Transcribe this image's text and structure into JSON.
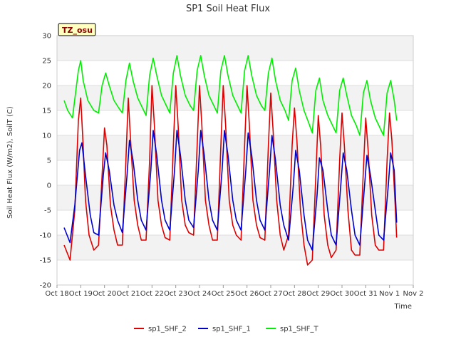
{
  "chart_data": {
    "type": "line",
    "title": "SP1 Soil Heat Flux",
    "xlabel": "Time",
    "ylabel": "Soil Heat Flux (W/m2), SoilT (C)",
    "badge": "TZ_osu",
    "ylim": [
      -20,
      30
    ],
    "yticks": [
      -20,
      -15,
      -10,
      -5,
      0,
      5,
      10,
      15,
      20,
      25,
      30
    ],
    "xlim": [
      0,
      15
    ],
    "xticks": [
      {
        "pos": 0,
        "label": "Oct 18"
      },
      {
        "pos": 1,
        "label": "Oct 19"
      },
      {
        "pos": 2,
        "label": "Oct 20"
      },
      {
        "pos": 3,
        "label": "Oct 21"
      },
      {
        "pos": 4,
        "label": "Oct 22"
      },
      {
        "pos": 5,
        "label": "Oct 23"
      },
      {
        "pos": 6,
        "label": "Oct 24"
      },
      {
        "pos": 7,
        "label": "Oct 25"
      },
      {
        "pos": 8,
        "label": "Oct 26"
      },
      {
        "pos": 9,
        "label": "Oct 27"
      },
      {
        "pos": 10,
        "label": "Oct 28"
      },
      {
        "pos": 11,
        "label": "Oct 29"
      },
      {
        "pos": 12,
        "label": "Oct 30"
      },
      {
        "pos": 13,
        "label": "Oct 31"
      },
      {
        "pos": 14,
        "label": "Nov 1"
      },
      {
        "pos": 15,
        "label": "Nov 2"
      }
    ],
    "grid": true,
    "legend": "bottom",
    "series": [
      {
        "name": "sp1_SHF_2",
        "color": "#dd0000",
        "x": [
          0.3,
          0.55,
          0.75,
          0.9,
          1.0,
          1.1,
          1.2,
          1.35,
          1.55,
          1.75,
          1.9,
          2.0,
          2.1,
          2.25,
          2.4,
          2.55,
          2.75,
          2.9,
          3.0,
          3.1,
          3.25,
          3.4,
          3.55,
          3.75,
          3.9,
          4.0,
          4.1,
          4.25,
          4.4,
          4.55,
          4.75,
          4.9,
          5.0,
          5.1,
          5.25,
          5.4,
          5.55,
          5.75,
          5.9,
          6.0,
          6.1,
          6.25,
          6.4,
          6.55,
          6.75,
          6.9,
          7.0,
          7.1,
          7.25,
          7.4,
          7.55,
          7.75,
          7.9,
          8.0,
          8.1,
          8.25,
          8.4,
          8.55,
          8.75,
          8.9,
          9.0,
          9.1,
          9.25,
          9.4,
          9.55,
          9.75,
          9.9,
          10.0,
          10.1,
          10.25,
          10.4,
          10.55,
          10.75,
          10.9,
          11.0,
          11.1,
          11.25,
          11.4,
          11.55,
          11.75,
          11.9,
          12.0,
          12.1,
          12.25,
          12.4,
          12.55,
          12.75,
          12.9,
          13.0,
          13.1,
          13.25,
          13.4,
          13.55,
          13.75,
          13.9,
          14.0,
          14.1,
          14.25,
          14.3
        ],
        "values": [
          -12,
          -15,
          -5,
          13,
          17.5,
          8,
          -3,
          -10,
          -13,
          -12,
          2,
          11.5,
          8,
          -4,
          -9,
          -12,
          -12,
          5,
          17.5,
          9,
          -3,
          -8,
          -11,
          -11,
          5,
          20,
          12,
          -3,
          -8,
          -10.5,
          -11,
          8,
          20,
          12,
          -3,
          -8,
          -9.5,
          -10,
          8,
          20,
          12,
          -3,
          -8,
          -11,
          -11,
          8,
          20,
          12,
          -3,
          -8,
          -10,
          -11,
          8,
          20,
          12,
          -3,
          -8,
          -10.5,
          -11,
          8,
          18.5,
          11,
          -3,
          -10,
          -13,
          -10,
          8,
          15.5,
          9,
          -5,
          -12,
          -16,
          -15,
          2,
          14,
          8,
          -6,
          -12,
          -14.5,
          -13,
          5,
          14.5,
          8,
          -5,
          -13,
          -14,
          -14,
          3,
          13.5,
          7,
          -6,
          -12,
          -13,
          -13,
          5,
          14.5,
          9,
          -5,
          -10.5
        ]
      },
      {
        "name": "sp1_SHF_1",
        "color": "#0000cc",
        "x": [
          0.3,
          0.55,
          0.75,
          0.95,
          1.05,
          1.2,
          1.4,
          1.55,
          1.75,
          1.95,
          2.05,
          2.2,
          2.4,
          2.55,
          2.75,
          2.95,
          3.05,
          3.2,
          3.4,
          3.55,
          3.75,
          3.95,
          4.05,
          4.2,
          4.4,
          4.55,
          4.75,
          4.95,
          5.05,
          5.2,
          5.4,
          5.55,
          5.75,
          5.95,
          6.05,
          6.2,
          6.4,
          6.55,
          6.75,
          6.95,
          7.05,
          7.2,
          7.4,
          7.55,
          7.75,
          7.95,
          8.05,
          8.2,
          8.4,
          8.55,
          8.75,
          8.95,
          9.05,
          9.2,
          9.4,
          9.55,
          9.75,
          9.95,
          10.05,
          10.2,
          10.4,
          10.55,
          10.75,
          10.95,
          11.05,
          11.2,
          11.4,
          11.55,
          11.75,
          11.95,
          12.05,
          12.2,
          12.4,
          12.55,
          12.75,
          12.95,
          13.05,
          13.2,
          13.4,
          13.55,
          13.75,
          13.95,
          14.05,
          14.2,
          14.3
        ],
        "values": [
          -8.5,
          -11.5,
          -4,
          7,
          8.5,
          2,
          -6,
          -9.5,
          -10,
          2,
          6.5,
          3,
          -4,
          -7,
          -9.5,
          2,
          9,
          5,
          -3,
          -7,
          -9,
          3,
          11,
          6,
          -3,
          -7,
          -9,
          3,
          11,
          6,
          -3,
          -7,
          -8.5,
          3,
          11,
          6,
          -3,
          -7,
          -9,
          3,
          11,
          6,
          -3,
          -7,
          -9,
          3,
          10.5,
          6,
          -3,
          -7,
          -9,
          3,
          10,
          5,
          -4,
          -8,
          -11,
          0,
          7,
          3,
          -6,
          -11,
          -13,
          -2,
          5.5,
          3,
          -5,
          -10,
          -12,
          0,
          6.5,
          3,
          -5,
          -10,
          -12,
          0,
          6,
          2,
          -5,
          -10,
          -11,
          0,
          6.5,
          3,
          -7.5
        ]
      },
      {
        "name": "sp1_SHF_T",
        "color": "#00ee00",
        "x": [
          0.3,
          0.45,
          0.65,
          0.9,
          1.0,
          1.1,
          1.3,
          1.55,
          1.75,
          1.9,
          2.05,
          2.2,
          2.4,
          2.6,
          2.75,
          2.9,
          3.05,
          3.2,
          3.4,
          3.6,
          3.75,
          3.9,
          4.05,
          4.2,
          4.4,
          4.6,
          4.75,
          4.9,
          5.05,
          5.2,
          5.4,
          5.6,
          5.75,
          5.9,
          6.05,
          6.2,
          6.4,
          6.6,
          6.75,
          6.9,
          7.05,
          7.2,
          7.4,
          7.6,
          7.75,
          7.9,
          8.05,
          8.2,
          8.4,
          8.6,
          8.75,
          8.9,
          9.05,
          9.2,
          9.4,
          9.6,
          9.75,
          9.9,
          10.05,
          10.2,
          10.4,
          10.6,
          10.75,
          10.9,
          11.05,
          11.2,
          11.4,
          11.6,
          11.75,
          11.9,
          12.05,
          12.2,
          12.4,
          12.6,
          12.75,
          12.9,
          13.05,
          13.2,
          13.4,
          13.6,
          13.75,
          13.9,
          14.05,
          14.2,
          14.3
        ],
        "values": [
          17,
          15,
          13.5,
          23,
          25,
          21,
          17,
          15,
          14.5,
          20,
          22.5,
          20,
          17,
          15.5,
          14.5,
          21,
          24.5,
          21,
          17.5,
          15.5,
          14,
          22,
          25.5,
          22,
          18,
          16,
          14.5,
          22.5,
          26,
          22,
          18,
          16,
          15,
          23,
          26,
          22,
          18,
          16,
          14.5,
          23,
          26,
          22,
          18,
          16,
          14.5,
          23,
          26,
          22,
          18,
          16,
          15,
          22.5,
          25.5,
          21,
          17,
          15,
          13,
          21,
          23.5,
          19,
          15,
          12.5,
          10.5,
          19,
          21.5,
          17,
          14,
          12,
          10.5,
          19,
          21.5,
          18,
          14,
          12,
          10,
          18.5,
          21,
          17,
          13.5,
          11.5,
          10,
          18.5,
          21,
          17,
          13
        ]
      }
    ]
  }
}
